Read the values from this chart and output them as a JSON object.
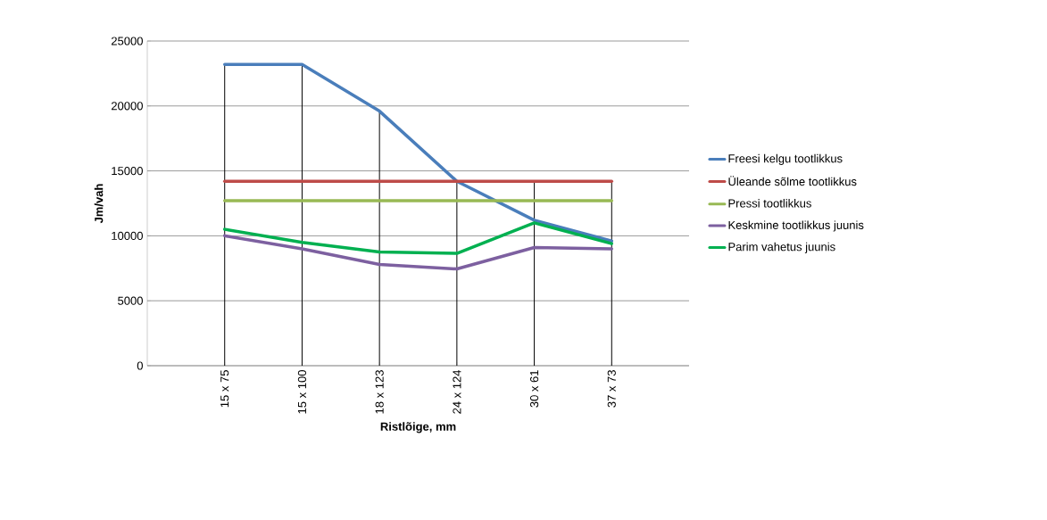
{
  "chart_data": {
    "type": "line",
    "xlabel": "Ristlõige, mm",
    "ylabel": "Jm/vah",
    "categories": [
      "15 x 75",
      "15 x 100",
      "18 x 123",
      "24 x 124",
      "30 x 61",
      "37 x 73"
    ],
    "series": [
      {
        "name": "Freesi kelgu tootlikkus",
        "color": "#4a7ebb",
        "values": [
          23200,
          23200,
          19600,
          14200,
          11200,
          9600
        ]
      },
      {
        "name": "Üleande sõlme tootlikkus",
        "color": "#be4b48",
        "values": [
          14200,
          14200,
          14200,
          14200,
          14200,
          14200
        ]
      },
      {
        "name": "Pressi tootlikkus",
        "color": "#98b954",
        "values": [
          12700,
          12700,
          12700,
          12700,
          12700,
          12700
        ]
      },
      {
        "name": "Keskmine tootlikkus juunis",
        "color": "#7d60a0",
        "values": [
          10000,
          9000,
          7800,
          7450,
          9100,
          9000
        ]
      },
      {
        "name": "Parim vahetus juunis",
        "color": "#00b050",
        "values": [
          10500,
          9500,
          8750,
          8650,
          11000,
          9400
        ]
      }
    ],
    "ref_lines": [
      {
        "axis": "x",
        "value": "15 x 75",
        "color": "#000000"
      },
      {
        "axis": "x",
        "value": "15 x 100",
        "color": "#000000"
      },
      {
        "axis": "x",
        "value": "18 x 123",
        "color": "#000000"
      },
      {
        "axis": "x",
        "value": "24 x 124",
        "color": "#000000"
      },
      {
        "axis": "x",
        "value": "30 x 61",
        "color": "#000000"
      },
      {
        "axis": "x",
        "value": "37 x 73",
        "color": "#000000"
      }
    ],
    "ylim": [
      0,
      25000
    ],
    "yticks": [
      0,
      5000,
      10000,
      15000,
      20000,
      25000
    ],
    "grid": "y",
    "legend": "right",
    "marker": "none",
    "line_style": "solid"
  }
}
